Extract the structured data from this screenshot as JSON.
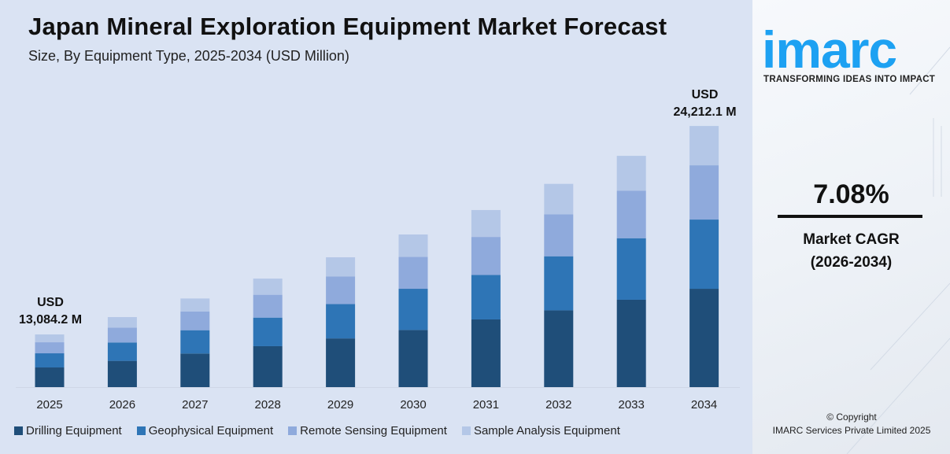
{
  "header": {
    "title": "Japan Mineral Exploration Equipment Market Forecast",
    "subtitle": "Size, By Equipment Type, 2025-2034 (USD Million)"
  },
  "chart_data": {
    "type": "bar",
    "stacked": true,
    "categories": [
      "2025",
      "2026",
      "2027",
      "2028",
      "2029",
      "2030",
      "2031",
      "2032",
      "2033",
      "2034"
    ],
    "series": [
      {
        "name": "Drilling Equipment",
        "color": "#1f4e79",
        "values": [
          4882.5,
          5254.0,
          5684.7,
          6059.6,
          6450.8,
          6893.6,
          7538.6,
          7977.4,
          8542.0,
          9115.9
        ]
      },
      {
        "name": "Geophysical Equipment",
        "color": "#2e75b6",
        "values": [
          3515.3,
          3677.8,
          3948.1,
          4227.6,
          4553.5,
          4972.4,
          4956.8,
          5620.0,
          6020.4,
          6418.1
        ]
      },
      {
        "name": "Remote Sensing Equipment",
        "color": "#8faadc",
        "values": [
          2734.0,
          2977.3,
          3158.4,
          3382.1,
          3668.2,
          3842.3,
          4234.0,
          4351.0,
          4637.3,
          5032.2
        ]
      },
      {
        "name": "Sample Analysis Equipment",
        "color": "#b4c7e7",
        "values": [
          1952.4,
          2101.5,
          2211.4,
          2395.5,
          2529.7,
          2711.8,
          2994.9,
          3172.4,
          3416.5,
          3645.9
        ]
      }
    ],
    "annotations": {
      "first": {
        "line1": "USD",
        "line2": "13,084.2 M"
      },
      "last": {
        "line1": "USD",
        "line2": "24,212.1 M"
      }
    },
    "legend_position": "bottom",
    "grid": false,
    "xlabel": "",
    "ylabel": ""
  },
  "side": {
    "logo": "imarc",
    "tagline": "TRANSFORMING IDEAS INTO IMPACT",
    "cagr_value": "7.08%",
    "cagr_label": "Market CAGR",
    "cagr_period": "(2026-2034)",
    "copyright": "© Copyright",
    "company": "IMARC Services Private Limited 2025",
    "brand_color": "#1da1f2"
  }
}
